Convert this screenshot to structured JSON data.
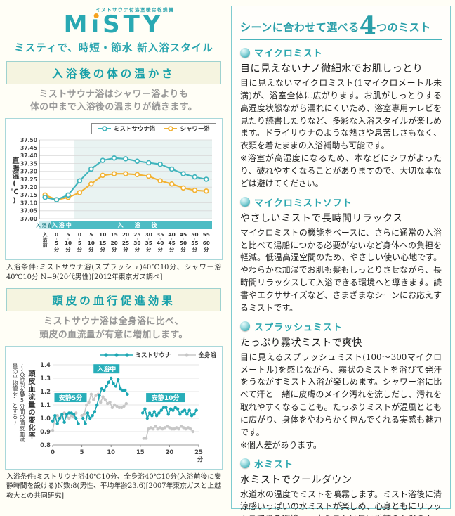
{
  "logo": {
    "small_text": "ミストサウナ付浴室暖房乾燥機",
    "brand_m": "M",
    "brand_rest": "STY",
    "tagline": "ミスティで、時短・節水 新入浴スタイル"
  },
  "section1": {
    "title": "入浴後の体の温かさ",
    "desc": "ミストサウナ浴はシャワー浴よりも\n体の中まで入浴後の温まりが続きます。",
    "footnote": "入浴条件:ミストサウナ浴(スプラッシュ)40℃10分、シャワー浴40℃10分 N=9(20代男性)[2012年東京ガス調べ]"
  },
  "section2": {
    "title": "頭皮の血行促進効果",
    "desc": "ミストサウナ浴は全身浴に比べ、\n頭皮の血流量が有意に増加します。",
    "footnote": "入浴条件:ミストサウナ浴40℃10分、全身浴40℃10分(入浴前後に安静時間を設ける)N数:8(男性、平均年齢23.6)[2007年東京ガスと上越教大との共同研究]"
  },
  "right_panel": {
    "heading_prefix": "シーンに合わせて選べる",
    "heading_number": "4",
    "heading_suffix": "つのミスト",
    "items": [
      {
        "title": "マイクロミスト",
        "subtitle": "目に見えないナノ微細水でお肌しっとり",
        "body": "目に見えないマイクロミスト(1マイクロメートル未満)が、浴室全体に広がります。お肌がしっとりする高湿度状態ながら濡れにくいため、浴室専用テレビを見たり読書したりなど、多彩な入浴スタイルが楽しめます。ドライサウナのような熱さや息苦しさもなく、衣類を着たままの入浴補助も可能です。\n※浴室が高湿度になるため、本などにシワがよったり、破れやすくなることがありますので、大切な本などは避けてください。"
      },
      {
        "title": "マイクロミストソフト",
        "subtitle": "やさしいミストで長時間リラックス",
        "body": "マイクロミストの機能をベースに、さらに通常の入浴と比べて湯船につかる必要がないなど身体への負担を軽減。低温高湿空間のため、やさしい使い心地です。やわらかな加湿でお肌も髪もしっとりさせながら、長時間リラックスして入浴できる環境へと導きます。読書やエクササイズなど、さまざまなシーンにお応えするミストです。"
      },
      {
        "title": "スプラッシュミスト",
        "subtitle": "たっぷり霧状ミストで爽快",
        "body": "目に見えるスプラッシュミスト(100〜300マイクロメートル)を感じながら、霧状のミストを浴びて発汗をうながすミスト入浴が楽しめます。シャワー浴に比べて汗と一緒に皮膚のメイク汚れを流しだし、汚れを取れやすくなることも。たっぷりミストが温風とともに広がり、身体をやわらかく包んでくれる実感も魅力です。\n※個人差があります。"
      },
      {
        "title": "水ミスト",
        "subtitle": "水ミストでクールダウン",
        "body": "水道水の温度でミストを噴霧します。ミスト浴後に清涼感いっぱいの水ミストが楽しめ、心身ともにリラックスできる環境へ。水ミストは暑い季節の入浴のクールダウンにもぴったりです。"
      }
    ]
  },
  "chart_data": [
    {
      "type": "line",
      "ylabel": "直腸温(℃)",
      "ylim": [
        37.0,
        37.5
      ],
      "ytick_step": 0.05,
      "grid": true,
      "legend_position": "top-right",
      "shaded_from_index": 3,
      "phase_bands": [
        {
          "label": "入浴前",
          "from": 0,
          "to": 1,
          "style": "light"
        },
        {
          "label": "入浴中",
          "from": 1,
          "to": 3,
          "style": "dark"
        },
        {
          "label": "入浴後",
          "from": 3,
          "to": 15,
          "style": "dark"
        }
      ],
      "categories": [
        {
          "v": "入浴前"
        },
        {
          "t": "0",
          "b": "5"
        },
        {
          "t": "5",
          "b": "10"
        },
        {
          "t": "0",
          "b": "5"
        },
        {
          "t": "5",
          "b": "10"
        },
        {
          "t": "10",
          "b": "15"
        },
        {
          "t": "15",
          "b": "20"
        },
        {
          "t": "20",
          "b": "25"
        },
        {
          "t": "25",
          "b": "30"
        },
        {
          "t": "30",
          "b": "35"
        },
        {
          "t": "35",
          "b": "40"
        },
        {
          "t": "40",
          "b": "45"
        },
        {
          "t": "45",
          "b": "50"
        },
        {
          "t": "50",
          "b": "55"
        },
        {
          "t": "55",
          "b": "60"
        }
      ],
      "x_unit": "分",
      "series": [
        {
          "name": "ミストサウナ浴",
          "color": "#3fb4bc",
          "values": [
            37.135,
            37.12,
            37.15,
            37.24,
            37.315,
            37.37,
            37.385,
            37.38,
            37.365,
            37.355,
            37.345,
            37.315,
            37.285,
            37.265,
            37.25
          ]
        },
        {
          "name": "シャワー浴",
          "color": "#f2b233",
          "values": [
            37.15,
            37.12,
            37.135,
            37.165,
            37.22,
            37.275,
            37.285,
            37.285,
            37.28,
            37.27,
            37.24,
            37.22,
            37.195,
            37.18,
            37.175
          ]
        }
      ]
    },
    {
      "type": "line",
      "ylabel": "頭皮血流量の変化率",
      "ylabel_note": "(入浴前安静5分間の頭皮血流量の平均値を1とする)",
      "xlim": [
        0,
        25
      ],
      "xticks": [
        0,
        5,
        10,
        15,
        20,
        25
      ],
      "x_unit": "分",
      "ylim": [
        0.8,
        1.4
      ],
      "ytick_step": 0.1,
      "grid": true,
      "annotations": [
        {
          "label": "安静5分",
          "x": 0.3,
          "y": 1.155
        },
        {
          "label": "入浴中",
          "x": 7.0,
          "y": 1.37
        },
        {
          "label": "安静10分",
          "x": 16.0,
          "y": 1.155
        }
      ],
      "series": [
        {
          "name": "ミストサウナ",
          "color": "#1ba7b3",
          "segments": [
            [
              [
                0,
                0.98
              ],
              [
                0.4,
                1.02
              ],
              [
                0.8,
                0.96
              ],
              [
                1.2,
                1.0
              ],
              [
                1.6,
                1.03
              ],
              [
                2.0,
                0.97
              ],
              [
                2.4,
                1.03
              ],
              [
                2.8,
                1.04
              ],
              [
                3.2,
                1.04
              ],
              [
                3.6,
                1.03
              ],
              [
                4.0,
                1.0
              ],
              [
                4.4,
                0.96
              ]
            ],
            [
              [
                5.2,
                1.0
              ],
              [
                5.6,
                0.96
              ],
              [
                6.0,
                1.04
              ],
              [
                6.4,
                1.0
              ],
              [
                6.8,
                1.02
              ],
              [
                7.2,
                1.05
              ],
              [
                7.6,
                1.1
              ],
              [
                8.0,
                1.17
              ],
              [
                8.4,
                1.22
              ],
              [
                8.8,
                1.21
              ],
              [
                9.2,
                1.24
              ],
              [
                9.6,
                1.27
              ],
              [
                10.0,
                1.3
              ],
              [
                10.4,
                1.26
              ],
              [
                10.8,
                1.24
              ],
              [
                11.2,
                1.29
              ],
              [
                11.6,
                1.22
              ],
              [
                12.0,
                1.21
              ],
              [
                12.4,
                1.21
              ],
              [
                12.8,
                1.18
              ]
            ],
            [
              [
                15.4,
                1.04
              ],
              [
                15.8,
                1.07
              ],
              [
                16.2,
                1.0
              ],
              [
                16.6,
                1.04
              ],
              [
                17.0,
                1.02
              ],
              [
                17.4,
                1.05
              ],
              [
                17.8,
                1.02
              ],
              [
                18.2,
                1.04
              ],
              [
                18.6,
                1.06
              ],
              [
                19.0,
                1.08
              ],
              [
                19.4,
                1.08
              ],
              [
                19.8,
                1.03
              ],
              [
                20.2,
                1.07
              ],
              [
                20.6,
                1.06
              ],
              [
                21.0,
                1.08
              ],
              [
                21.4,
                1.07
              ],
              [
                21.8,
                1.03
              ],
              [
                22.2,
                1.05
              ],
              [
                22.6,
                1.06
              ],
              [
                23.0,
                1.03
              ],
              [
                23.4,
                1.06
              ],
              [
                23.8,
                1.02
              ],
              [
                24.2,
                1.03
              ],
              [
                24.6,
                1.06
              ]
            ]
          ]
        },
        {
          "name": "全身浴",
          "color": "#c7c7c7",
          "segments": [
            [
              [
                0,
                0.91
              ],
              [
                0.4,
                1.0
              ],
              [
                0.8,
                1.02
              ],
              [
                1.2,
                1.0
              ],
              [
                1.6,
                1.01
              ],
              [
                2.0,
                1.04
              ],
              [
                2.4,
                1.02
              ],
              [
                2.8,
                1.0
              ],
              [
                3.2,
                1.02
              ],
              [
                3.6,
                1.01
              ],
              [
                4.0,
                1.04
              ]
            ],
            [
              [
                5.0,
                1.02
              ],
              [
                5.4,
                1.03
              ],
              [
                5.8,
                1.1
              ],
              [
                6.2,
                1.12
              ],
              [
                6.6,
                1.18
              ],
              [
                7.0,
                1.14
              ],
              [
                7.4,
                1.17
              ],
              [
                7.8,
                1.18
              ],
              [
                8.2,
                1.12
              ],
              [
                8.6,
                1.16
              ],
              [
                9.0,
                1.14
              ],
              [
                9.4,
                1.11
              ],
              [
                9.8,
                1.12
              ],
              [
                10.2,
                1.08
              ],
              [
                10.6,
                1.1
              ],
              [
                11.0,
                1.09
              ],
              [
                11.4,
                1.08
              ],
              [
                11.8,
                1.08
              ],
              [
                12.2,
                1.09
              ],
              [
                12.6,
                1.11
              ]
            ],
            [
              [
                15.6,
                0.85
              ],
              [
                16.0,
                0.85
              ],
              [
                16.4,
                0.92
              ],
              [
                16.8,
                0.93
              ],
              [
                17.2,
                0.92
              ],
              [
                17.6,
                0.94
              ],
              [
                18.0,
                0.92
              ],
              [
                18.4,
                0.93
              ],
              [
                18.8,
                0.92
              ],
              [
                19.2,
                0.93
              ],
              [
                19.6,
                0.94
              ],
              [
                20.0,
                0.93
              ],
              [
                20.4,
                0.92
              ],
              [
                20.8,
                0.92
              ],
              [
                21.2,
                0.93
              ],
              [
                21.6,
                0.92
              ],
              [
                22.0,
                0.94
              ],
              [
                22.4,
                0.93
              ],
              [
                22.8,
                0.92
              ],
              [
                23.2,
                0.93
              ],
              [
                23.6,
                0.92
              ],
              [
                24.0,
                0.9
              ]
            ]
          ]
        }
      ]
    }
  ]
}
